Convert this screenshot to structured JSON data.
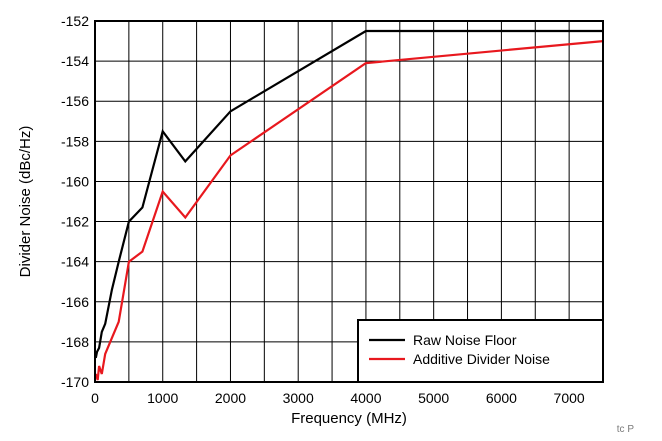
{
  "chart_data": {
    "type": "line",
    "title": "",
    "xlabel": "Frequency (MHz)",
    "ylabel": "Divider Noise (dBc/Hz)",
    "xlim": [
      0,
      7500
    ],
    "ylim": [
      -170,
      -152
    ],
    "x_ticks": [
      0,
      1000,
      2000,
      3000,
      4000,
      5000,
      6000,
      7000
    ],
    "x_tick_labels": [
      "0",
      "1000",
      "2000",
      "3000",
      "4000",
      "5000",
      "6000",
      "7000"
    ],
    "x_grid": [
      0,
      500,
      1000,
      1500,
      2000,
      2500,
      3000,
      3500,
      4000,
      4500,
      5000,
      5500,
      6000,
      6500,
      7000,
      7500
    ],
    "y_ticks": [
      -170,
      -168,
      -166,
      -164,
      -162,
      -160,
      -158,
      -156,
      -154,
      -152
    ],
    "y_tick_labels": [
      "-170",
      "-168",
      "-166",
      "-164",
      "-162",
      "-160",
      "-158",
      "-156",
      "-154",
      "-152"
    ],
    "grid": true,
    "legend_position": "bottom-right",
    "series": [
      {
        "name": "Raw Noise Floor",
        "color": "#000000",
        "x": [
          12,
          30,
          60,
          100,
          150,
          250,
          350,
          500,
          700,
          1000,
          1333,
          2000,
          4000,
          7500
        ],
        "y": [
          -168.8,
          -168.5,
          -168.3,
          -167.5,
          -167.1,
          -165.4,
          -164.0,
          -162.0,
          -161.3,
          -157.5,
          -159.0,
          -156.5,
          -152.5,
          -152.5
        ]
      },
      {
        "name": "Additive Divider Noise",
        "color": "#e8181e",
        "x": [
          12,
          40,
          60,
          100,
          150,
          250,
          350,
          500,
          700,
          1000,
          1333,
          2000,
          4000,
          7500
        ],
        "y": [
          -169.6,
          -169.9,
          -169.2,
          -169.6,
          -168.6,
          -167.8,
          -167.0,
          -164.0,
          -163.5,
          -160.5,
          -161.8,
          -158.7,
          -154.1,
          -153.0
        ]
      }
    ]
  },
  "footer": {
    "mark": "tc P"
  }
}
